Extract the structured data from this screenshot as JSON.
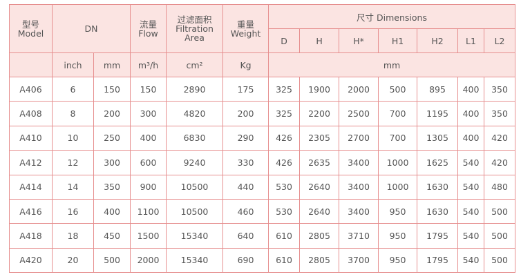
{
  "header": {
    "model": [
      "型号",
      "Model"
    ],
    "dn": "DN",
    "flow": [
      "流量",
      "Flow"
    ],
    "filtration": [
      "过滤面积",
      "Filtration",
      "Area"
    ],
    "weight": [
      "重量",
      "Weight"
    ],
    "dimensions": "尺寸 Dimensions",
    "dimension_columns": [
      "D",
      "H",
      "H*",
      "H1",
      "H2",
      "L1",
      "L2"
    ],
    "units": [
      "inch",
      "mm",
      "m³/h",
      "cm²",
      "Kg",
      "mm"
    ]
  },
  "rows": [
    [
      "A406",
      6,
      150,
      150,
      2890,
      175,
      325,
      1900,
      2000,
      500,
      895,
      400,
      350
    ],
    [
      "A408",
      8,
      200,
      300,
      4820,
      200,
      325,
      2200,
      2500,
      700,
      1195,
      400,
      350
    ],
    [
      "A410",
      10,
      250,
      400,
      6830,
      290,
      426,
      2305,
      2700,
      700,
      1305,
      400,
      420
    ],
    [
      "A412",
      12,
      300,
      600,
      9240,
      330,
      426,
      2635,
      3400,
      1000,
      1625,
      540,
      420
    ],
    [
      "A414",
      14,
      350,
      900,
      10500,
      440,
      530,
      2640,
      3400,
      1000,
      1630,
      540,
      480
    ],
    [
      "A416",
      16,
      400,
      1100,
      10500,
      460,
      530,
      2640,
      3400,
      950,
      1630,
      540,
      500
    ],
    [
      "A418",
      18,
      450,
      1500,
      15340,
      640,
      610,
      2805,
      3710,
      950,
      1795,
      540,
      500
    ],
    [
      "A420",
      20,
      500,
      2000,
      15340,
      690,
      610,
      2805,
      3700,
      950,
      1795,
      540,
      500
    ]
  ]
}
